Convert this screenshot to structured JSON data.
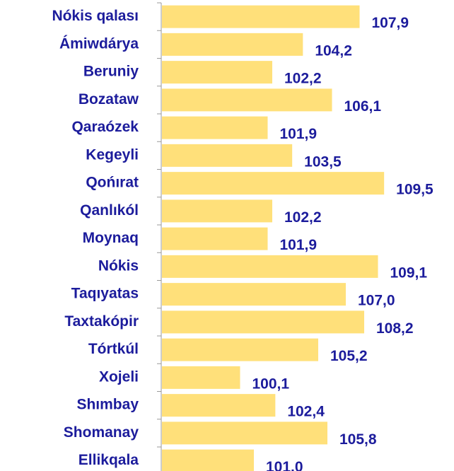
{
  "chart_data": {
    "type": "bar",
    "orientation": "horizontal",
    "categories": [
      "Nókis qalası",
      "Ámiwdárya",
      "Beruniy",
      "Bozataw",
      "Qaraózek",
      "Kegeyli",
      "Qońırat",
      "Qanlıkól",
      "Moynaq",
      "Nókis",
      "Taqıyatas",
      "Taxtakópir",
      "Tórtkúl",
      "Xojeli",
      "Shımbay",
      "Shomanay",
      "Ellikqala"
    ],
    "values": [
      107.9,
      104.2,
      102.2,
      106.1,
      101.9,
      103.5,
      109.5,
      102.2,
      101.9,
      109.1,
      107.0,
      108.2,
      105.2,
      100.1,
      102.4,
      105.8,
      101.0
    ],
    "value_labels": [
      "107,9",
      "104,2",
      "102,2",
      "106,1",
      "101,9",
      "103,5",
      "109,5",
      "102,2",
      "101,9",
      "109,1",
      "107,0",
      "108,2",
      "105,2",
      "100,1",
      "102,4",
      "105,8",
      "101,0"
    ],
    "color": "#ffe07a",
    "xlim": [
      95,
      110
    ]
  }
}
